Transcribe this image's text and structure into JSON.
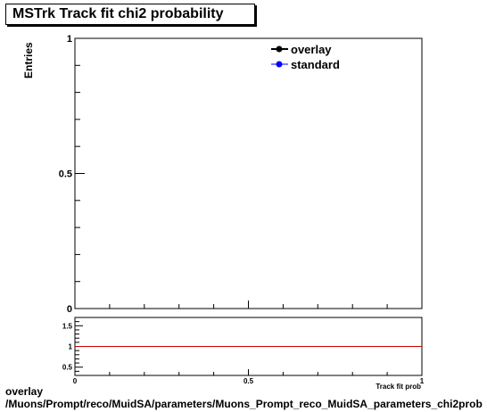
{
  "chart_data": {
    "type": "line",
    "title": "MSTrk Track fit chi2 probability",
    "ylabel": "Entries",
    "xlabel": "Track fit prob",
    "xlim": [
      0,
      1
    ],
    "ylim": [
      0,
      1
    ],
    "x_ticks": [
      "0",
      "0.5",
      "1"
    ],
    "y_ticks": [
      "0",
      "0.5",
      "1"
    ],
    "series": [
      {
        "name": "overlay",
        "color": "#000000",
        "marker": "circle",
        "values": []
      },
      {
        "name": "standard",
        "color": "#0000ff",
        "marker": "circle",
        "values": []
      }
    ],
    "legend_position": "top-right",
    "ratio_panel": {
      "ylim": [
        0.3,
        1.7
      ],
      "y_ticks": [
        "0.5",
        "1",
        "1.5"
      ],
      "x_ticks": [
        "0",
        "0.5",
        "1"
      ],
      "reference_line": 1,
      "reference_color": "#cc0000"
    }
  },
  "footer": {
    "line1": "overlay",
    "line2": "/Muons/Prompt/reco/MuidSA/parameters/Muons_Prompt_reco_MuidSA_parameters_chi2prob"
  }
}
